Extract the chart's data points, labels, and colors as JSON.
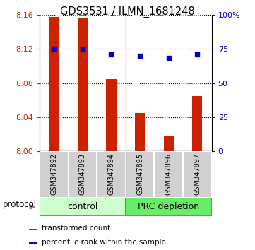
{
  "title": "GDS3531 / ILMN_1681248",
  "samples": [
    "GSM347892",
    "GSM347893",
    "GSM347894",
    "GSM347895",
    "GSM347896",
    "GSM347897"
  ],
  "bar_values": [
    8.158,
    8.156,
    8.085,
    8.045,
    8.018,
    8.065
  ],
  "bar_base": 8.0,
  "blue_values_pct": [
    75.0,
    75.0,
    71.0,
    70.0,
    68.5,
    71.0
  ],
  "ylim_left": [
    8.0,
    8.16
  ],
  "ylim_right": [
    0,
    100
  ],
  "yticks_left": [
    8.0,
    8.04,
    8.08,
    8.12,
    8.16
  ],
  "yticks_right": [
    0,
    25,
    50,
    75,
    100
  ],
  "ytick_labels_right": [
    "0",
    "25",
    "50",
    "75",
    "100%"
  ],
  "bar_color": "#cc2200",
  "blue_color": "#0000cc",
  "control_label": "control",
  "prc_label": "PRC depletion",
  "control_color": "#ccffcc",
  "prc_color": "#66ee66",
  "protocol_label": "protocol",
  "legend_bar_label": "transformed count",
  "legend_blue_label": "percentile rank within the sample",
  "tick_label_color_left": "#cc2200",
  "tick_label_color_right": "#0000cc",
  "plot_bg": "#ffffff",
  "label_bg": "#d4d4d4",
  "bar_width": 0.35
}
